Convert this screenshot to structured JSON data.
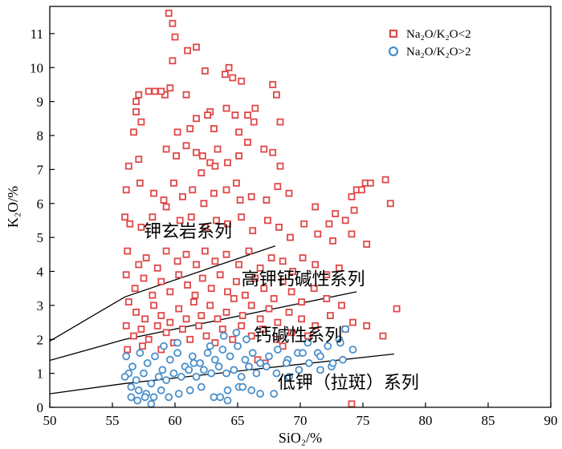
{
  "chart_data": {
    "type": "scatter",
    "xlabel": "SiO₂/%",
    "ylabel": "K₂O/%",
    "xlim": [
      50,
      90
    ],
    "ylim": [
      0,
      11.8
    ],
    "xticks": [
      50,
      55,
      60,
      65,
      70,
      75,
      80,
      85,
      90
    ],
    "yticks": [
      0,
      1,
      2,
      3,
      4,
      5,
      6,
      7,
      8,
      9,
      10,
      11
    ],
    "grid": false,
    "legend_position": "top-right",
    "legend": [
      {
        "label": "Na₂O/K₂O<2",
        "marker": "square",
        "color": "#e04848"
      },
      {
        "label": "Na₂O/K₂O>2",
        "marker": "circle",
        "color": "#4a8fc9"
      }
    ],
    "series": [
      {
        "name": "Na₂O/K₂O<2",
        "marker": "square",
        "color": "#e04848",
        "points": [
          [
            59.5,
            11.6
          ],
          [
            59.8,
            11.3
          ],
          [
            60,
            10.9
          ],
          [
            61,
            10.5
          ],
          [
            61.7,
            10.6
          ],
          [
            64.3,
            10.0
          ],
          [
            64,
            9.8
          ],
          [
            59.8,
            10.2
          ],
          [
            62.4,
            9.9
          ],
          [
            57.9,
            9.3
          ],
          [
            58.4,
            9.3
          ],
          [
            59.2,
            9.2
          ],
          [
            59.6,
            9.4
          ],
          [
            57.1,
            9.2
          ],
          [
            56.9,
            9.0
          ],
          [
            58.9,
            9.3
          ],
          [
            60.9,
            9.2
          ],
          [
            64.6,
            9.7
          ],
          [
            65.3,
            9.6
          ],
          [
            67.8,
            9.5
          ],
          [
            68.1,
            9.2
          ],
          [
            64.1,
            8.8
          ],
          [
            64.8,
            8.6
          ],
          [
            65.8,
            8.6
          ],
          [
            66.3,
            8.4
          ],
          [
            66.4,
            8.8
          ],
          [
            62.8,
            8.7
          ],
          [
            61.7,
            8.5
          ],
          [
            56.9,
            8.7
          ],
          [
            56.7,
            8.1
          ],
          [
            57.3,
            8.4
          ],
          [
            60.2,
            8.1
          ],
          [
            61.2,
            8.2
          ],
          [
            62.6,
            8.6
          ],
          [
            63.1,
            8.2
          ],
          [
            65.1,
            8.1
          ],
          [
            68.4,
            8.4
          ],
          [
            56.3,
            7.1
          ],
          [
            57.1,
            7.3
          ],
          [
            59.3,
            7.6
          ],
          [
            60.1,
            7.4
          ],
          [
            60.9,
            7.7
          ],
          [
            61.7,
            7.5
          ],
          [
            62.2,
            7.4
          ],
          [
            62.8,
            7.2
          ],
          [
            63.4,
            7.6
          ],
          [
            64.2,
            7.2
          ],
          [
            65.1,
            7.4
          ],
          [
            65.8,
            7.8
          ],
          [
            67.1,
            7.6
          ],
          [
            67.8,
            7.5
          ],
          [
            68.4,
            7.1
          ],
          [
            62.1,
            6.9
          ],
          [
            63.2,
            7.1
          ],
          [
            64.9,
            6.6
          ],
          [
            56.1,
            6.4
          ],
          [
            57.2,
            6.6
          ],
          [
            58.3,
            6.3
          ],
          [
            59.1,
            6.1
          ],
          [
            59.9,
            6.6
          ],
          [
            60.6,
            6.2
          ],
          [
            61.4,
            6.4
          ],
          [
            62.3,
            6.0
          ],
          [
            63.1,
            6.3
          ],
          [
            64.1,
            6.4
          ],
          [
            65.2,
            6.1
          ],
          [
            66.1,
            6.2
          ],
          [
            67.3,
            6.1
          ],
          [
            68.2,
            6.5
          ],
          [
            69.1,
            6.3
          ],
          [
            71.2,
            5.9
          ],
          [
            72.3,
            5.4
          ],
          [
            72.8,
            5.7
          ],
          [
            74.1,
            6.2
          ],
          [
            74.5,
            6.4
          ],
          [
            75.2,
            6.6
          ],
          [
            74.9,
            6.4
          ],
          [
            75.6,
            6.6
          ],
          [
            76.8,
            6.7
          ],
          [
            77.2,
            6.0
          ],
          [
            74.3,
            5.8
          ],
          [
            73.6,
            5.5
          ],
          [
            56.0,
            5.6
          ],
          [
            56.4,
            5.4
          ],
          [
            57.3,
            5.3
          ],
          [
            58.2,
            5.6
          ],
          [
            59.3,
            5.9
          ],
          [
            60.4,
            5.5
          ],
          [
            61.3,
            5.6
          ],
          [
            62.4,
            5.3
          ],
          [
            63.3,
            5.5
          ],
          [
            64.2,
            5.4
          ],
          [
            65.3,
            5.6
          ],
          [
            66.2,
            5.2
          ],
          [
            67.4,
            5.5
          ],
          [
            68.3,
            5.3
          ],
          [
            69.2,
            5.0
          ],
          [
            70.3,
            5.4
          ],
          [
            71.4,
            5.1
          ],
          [
            72.6,
            4.9
          ],
          [
            74.1,
            5.1
          ],
          [
            75.3,
            4.8
          ],
          [
            56.2,
            4.6
          ],
          [
            57.1,
            4.2
          ],
          [
            57.7,
            4.4
          ],
          [
            58.6,
            4.1
          ],
          [
            59.3,
            4.6
          ],
          [
            60.2,
            4.3
          ],
          [
            60.9,
            4.5
          ],
          [
            61.7,
            4.2
          ],
          [
            62.4,
            4.6
          ],
          [
            63.2,
            4.3
          ],
          [
            64.1,
            4.5
          ],
          [
            65.1,
            4.2
          ],
          [
            65.9,
            4.6
          ],
          [
            66.8,
            4.1
          ],
          [
            67.7,
            4.4
          ],
          [
            68.6,
            4.3
          ],
          [
            69.4,
            4.0
          ],
          [
            70.2,
            4.4
          ],
          [
            71.2,
            4.2
          ],
          [
            72.1,
            3.9
          ],
          [
            73.1,
            4.1
          ],
          [
            56.1,
            3.9
          ],
          [
            56.8,
            3.5
          ],
          [
            57.5,
            3.8
          ],
          [
            58.2,
            3.3
          ],
          [
            58.9,
            3.7
          ],
          [
            59.6,
            3.4
          ],
          [
            60.3,
            3.9
          ],
          [
            61.0,
            3.6
          ],
          [
            61.6,
            3.3
          ],
          [
            62.2,
            3.8
          ],
          [
            62.9,
            3.5
          ],
          [
            63.6,
            3.9
          ],
          [
            64.2,
            3.4
          ],
          [
            64.9,
            3.7
          ],
          [
            65.6,
            3.3
          ],
          [
            66.4,
            3.8
          ],
          [
            67.1,
            3.5
          ],
          [
            67.9,
            3.2
          ],
          [
            68.6,
            3.7
          ],
          [
            69.3,
            3.4
          ],
          [
            70.1,
            3.1
          ],
          [
            71.1,
            3.5
          ],
          [
            72.1,
            3.2
          ],
          [
            73.3,
            3.0
          ],
          [
            56.3,
            3.1
          ],
          [
            56.9,
            2.8
          ],
          [
            57.6,
            2.6
          ],
          [
            58.3,
            3.0
          ],
          [
            58.9,
            2.7
          ],
          [
            59.6,
            2.5
          ],
          [
            60.3,
            2.9
          ],
          [
            60.9,
            2.6
          ],
          [
            61.5,
            3.1
          ],
          [
            62.1,
            2.7
          ],
          [
            62.8,
            3.0
          ],
          [
            63.4,
            2.6
          ],
          [
            64.1,
            2.8
          ],
          [
            64.7,
            3.2
          ],
          [
            65.4,
            2.7
          ],
          [
            66.1,
            3.0
          ],
          [
            66.8,
            2.6
          ],
          [
            67.5,
            2.9
          ],
          [
            68.2,
            2.5
          ],
          [
            69.1,
            2.8
          ],
          [
            70.1,
            2.6
          ],
          [
            71.2,
            2.4
          ],
          [
            72.4,
            2.7
          ],
          [
            56.1,
            2.4
          ],
          [
            56.7,
            2.1
          ],
          [
            57.3,
            2.3
          ],
          [
            57.9,
            2.0
          ],
          [
            58.6,
            2.4
          ],
          [
            59.3,
            2.2
          ],
          [
            59.9,
            1.9
          ],
          [
            60.6,
            2.3
          ],
          [
            61.2,
            2.0
          ],
          [
            61.9,
            2.4
          ],
          [
            62.5,
            2.1
          ],
          [
            63.2,
            1.9
          ],
          [
            63.8,
            2.3
          ],
          [
            64.6,
            2.0
          ],
          [
            65.3,
            2.4
          ],
          [
            66.1,
            2.1
          ],
          [
            67.0,
            2.3
          ],
          [
            68.1,
            2.0
          ],
          [
            69.3,
            2.2
          ],
          [
            70.6,
            2.1
          ],
          [
            73.6,
            2.3
          ],
          [
            74.2,
            2.5
          ],
          [
            75.3,
            2.4
          ],
          [
            76.6,
            2.1
          ],
          [
            77.7,
            2.9
          ],
          [
            56.2,
            1.7
          ],
          [
            57.4,
            1.8
          ],
          [
            58.9,
            1.7
          ],
          [
            68.6,
            1.8
          ],
          [
            66.6,
            1.4
          ],
          [
            67.2,
            1.3
          ],
          [
            74.1,
            0.1
          ]
        ]
      },
      {
        "name": "Na₂O/K₂O>2",
        "marker": "circle",
        "color": "#4a8fc9",
        "points": [
          [
            56.1,
            1.5
          ],
          [
            56.6,
            1.2
          ],
          [
            57.2,
            1.6
          ],
          [
            57.8,
            1.3
          ],
          [
            58.4,
            1.5
          ],
          [
            59.0,
            1.1
          ],
          [
            59.6,
            1.4
          ],
          [
            60.2,
            1.6
          ],
          [
            60.8,
            1.2
          ],
          [
            61.4,
            1.5
          ],
          [
            62.0,
            1.3
          ],
          [
            62.6,
            1.6
          ],
          [
            63.2,
            1.4
          ],
          [
            63.8,
            1.7
          ],
          [
            64.4,
            1.5
          ],
          [
            65.0,
            1.8
          ],
          [
            65.6,
            1.4
          ],
          [
            66.2,
            1.6
          ],
          [
            66.8,
            1.3
          ],
          [
            67.5,
            1.5
          ],
          [
            68.2,
            1.7
          ],
          [
            69.0,
            1.4
          ],
          [
            69.8,
            1.6
          ],
          [
            70.6,
            1.9
          ],
          [
            71.4,
            1.6
          ],
          [
            72.2,
            1.8
          ],
          [
            73.1,
            2.0
          ],
          [
            56.3,
            1.0
          ],
          [
            56.9,
            0.8
          ],
          [
            57.5,
            1.0
          ],
          [
            58.1,
            0.7
          ],
          [
            58.7,
            0.9
          ],
          [
            59.3,
            0.8
          ],
          [
            59.9,
            1.0
          ],
          [
            60.5,
            0.9
          ],
          [
            61.1,
            1.1
          ],
          [
            61.7,
            0.9
          ],
          [
            62.3,
            1.1
          ],
          [
            62.9,
            1.0
          ],
          [
            63.5,
            1.2
          ],
          [
            64.1,
            1.0
          ],
          [
            64.7,
            1.1
          ],
          [
            65.3,
            0.9
          ],
          [
            65.9,
            1.2
          ],
          [
            66.5,
            1.0
          ],
          [
            67.3,
            1.2
          ],
          [
            68.1,
            1.0
          ],
          [
            68.9,
            1.3
          ],
          [
            69.9,
            1.1
          ],
          [
            70.7,
            1.3
          ],
          [
            71.6,
            1.1
          ],
          [
            72.5,
            1.2
          ],
          [
            73.4,
            1.4
          ],
          [
            74.2,
            1.7
          ],
          [
            56.0,
            0.9
          ],
          [
            56.5,
            0.6
          ],
          [
            57.1,
            0.5
          ],
          [
            57.7,
            0.4
          ],
          [
            58.3,
            0.3
          ],
          [
            58.9,
            0.5
          ],
          [
            59.5,
            0.3
          ],
          [
            60.3,
            0.4
          ],
          [
            61.2,
            0.5
          ],
          [
            62.1,
            0.6
          ],
          [
            63.1,
            0.3
          ],
          [
            64.2,
            0.5
          ],
          [
            65.1,
            0.6
          ],
          [
            56.5,
            0.3
          ],
          [
            57.0,
            0.2
          ],
          [
            57.6,
            0.3
          ],
          [
            58.1,
            0.1
          ],
          [
            63.6,
            0.3
          ],
          [
            64.2,
            0.2
          ],
          [
            65.4,
            0.6
          ],
          [
            66.1,
            0.5
          ],
          [
            66.8,
            0.4
          ],
          [
            67.9,
            0.4
          ],
          [
            69.1,
            0.9
          ],
          [
            70.2,
            1.6
          ],
          [
            71.6,
            1.5
          ],
          [
            72.6,
            1.3
          ],
          [
            73.6,
            2.3
          ],
          [
            73.2,
            1.9
          ],
          [
            61.5,
            1.3
          ],
          [
            62.8,
            1.8
          ],
          [
            63.9,
            2.1
          ],
          [
            64.9,
            2.2
          ],
          [
            65.7,
            2.0
          ],
          [
            60.2,
            1.9
          ],
          [
            59.1,
            1.8
          ]
        ]
      }
    ],
    "boundaries": [
      {
        "name": "upper",
        "points": [
          [
            50,
            1.95
          ],
          [
            56,
            3.25
          ],
          [
            68,
            4.75
          ]
        ]
      },
      {
        "name": "middle",
        "points": [
          [
            50,
            1.38
          ],
          [
            56,
            2.0
          ],
          [
            74.5,
            3.4
          ]
        ]
      },
      {
        "name": "lower",
        "points": [
          [
            50,
            0.4
          ],
          [
            56,
            0.7
          ],
          [
            77.5,
            1.57
          ]
        ]
      }
    ],
    "annotations": [
      {
        "text": "钾玄岩系列",
        "x": 57.5,
        "y": 5.0
      },
      {
        "text": "高钾钙碱性系列",
        "x": 65.3,
        "y": 3.6
      },
      {
        "text": "钙碱性系列",
        "x": 66.3,
        "y": 1.95
      },
      {
        "text": "低钾（拉斑）系列",
        "x": 68.2,
        "y": 0.55
      }
    ]
  }
}
